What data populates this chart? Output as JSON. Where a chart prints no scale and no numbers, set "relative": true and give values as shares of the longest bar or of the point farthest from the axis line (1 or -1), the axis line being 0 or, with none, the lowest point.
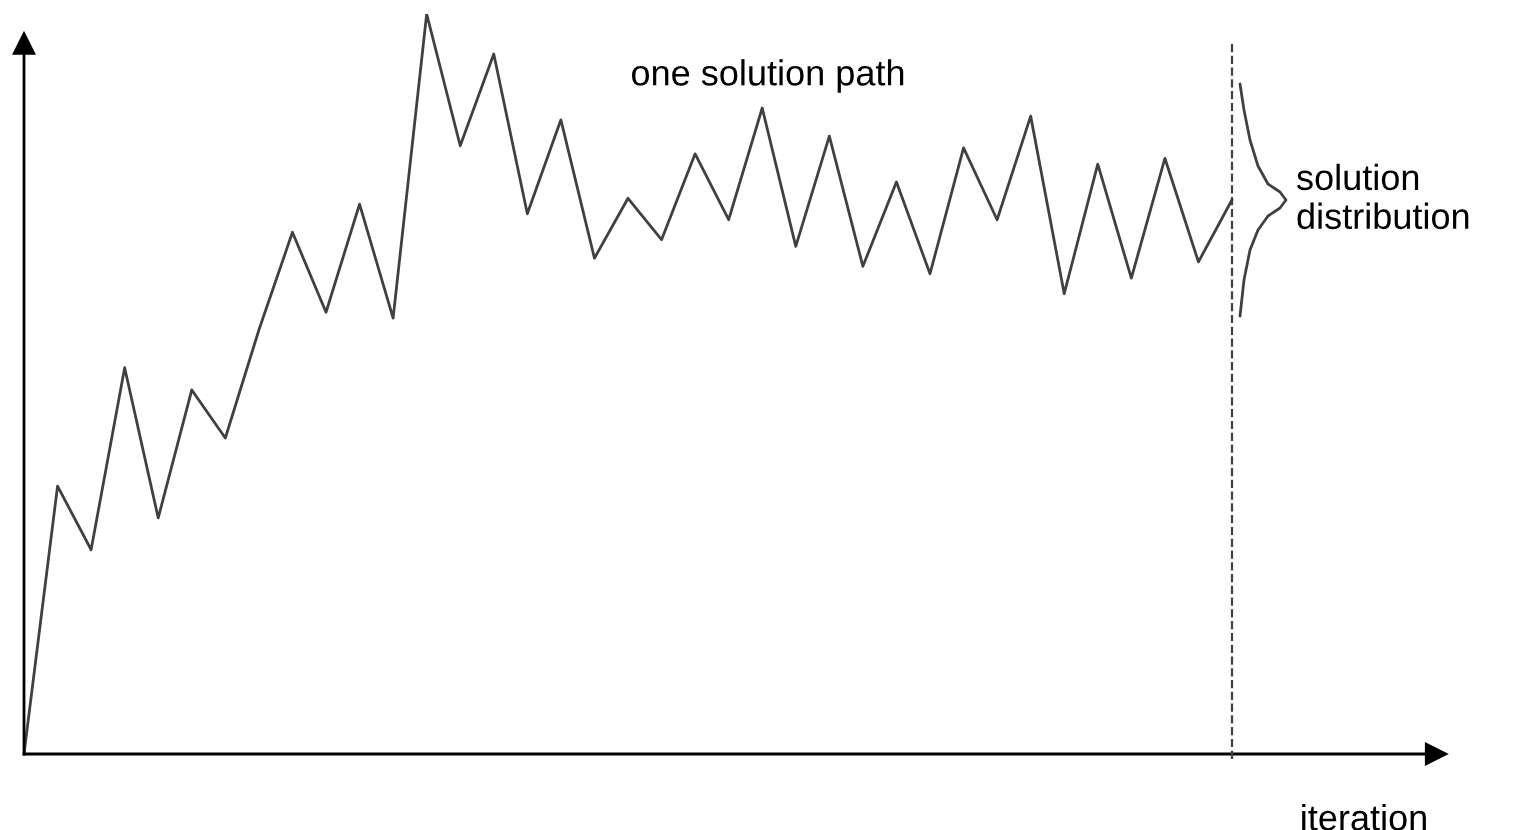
{
  "chart_data": {
    "type": "line",
    "relative": true,
    "xlabel": "iteration",
    "marker": "none",
    "line_style": "solid",
    "annotations": [
      "one solution path",
      "solution\ndistribution"
    ],
    "categories": [
      null,
      null,
      null,
      null,
      null,
      null,
      null,
      null,
      null,
      null,
      null,
      null,
      null,
      null,
      null,
      null,
      null,
      null,
      null,
      null,
      null,
      null,
      null,
      null,
      null,
      null,
      null,
      null,
      null,
      null,
      null,
      null,
      null,
      null,
      null,
      null,
      null
    ],
    "series": [
      {
        "color": "#404040",
        "values": [
          0,
          0.362,
          0.276,
          0.522,
          0.319,
          0.492,
          0.427,
          0.573,
          0.705,
          0.597,
          0.743,
          0.589,
          1.0,
          0.822,
          0.946,
          0.73,
          0.857,
          0.67,
          0.751,
          0.695,
          0.811,
          0.722,
          0.873,
          0.686,
          0.835,
          0.659,
          0.773,
          0.649,
          0.819,
          0.722,
          0.862,
          0.622,
          0.797,
          0.643,
          0.805,
          0.665,
          0.749
        ]
      }
    ]
  }
}
